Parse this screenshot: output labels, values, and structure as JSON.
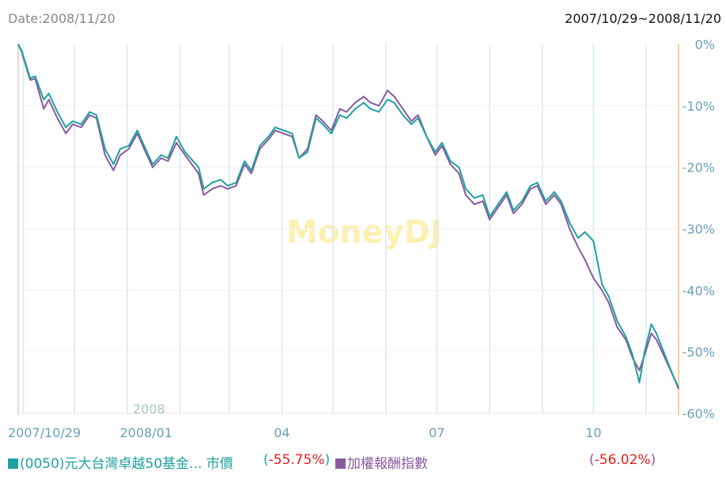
{
  "header": {
    "date_label": "Date:2008/11/20",
    "range_label": "2007/10/29~2008/11/20"
  },
  "watermark": "MoneyDJ",
  "legend": [
    {
      "name": "(0050)元大台灣卓越50基金... 市價",
      "value": "-55.75%",
      "color": "#20a0a0"
    },
    {
      "name": "加權報酬指數",
      "value": "-56.02%",
      "color": "#8a5a9e"
    }
  ],
  "chart_data": {
    "type": "line",
    "x_tick_labels": [
      "2007/10/29",
      "2008/01",
      "04",
      "07",
      "10"
    ],
    "year_marker": "2008",
    "y_tick_labels": [
      "0%",
      "-10%",
      "-20%",
      "-30%",
      "-40%",
      "-50%",
      "-60%"
    ],
    "ylim": [
      -60,
      0
    ],
    "x_range": [
      "2007-10-29",
      "2008-11-20"
    ],
    "grid": true,
    "series": [
      {
        "name": "(0050)元大台灣卓越50基金... 市價",
        "color": "#20a0a0",
        "points": [
          [
            "2007-10-29",
            0
          ],
          [
            "2007-10-31",
            -1
          ],
          [
            "2007-11-05",
            -5.5
          ],
          [
            "2007-11-08",
            -5.2
          ],
          [
            "2007-11-13",
            -9
          ],
          [
            "2007-11-16",
            -8
          ],
          [
            "2007-11-21",
            -11
          ],
          [
            "2007-11-26",
            -13.5
          ],
          [
            "2007-11-30",
            -12.5
          ],
          [
            "2007-12-05",
            -13
          ],
          [
            "2007-12-10",
            -11
          ],
          [
            "2007-12-14",
            -11.5
          ],
          [
            "2007-12-19",
            -17
          ],
          [
            "2007-12-24",
            -19.5
          ],
          [
            "2007-12-28",
            -17
          ],
          [
            "2008-01-02",
            -16.5
          ],
          [
            "2008-01-07",
            -14
          ],
          [
            "2008-01-11",
            -16.5
          ],
          [
            "2008-01-16",
            -19.5
          ],
          [
            "2008-01-21",
            -18
          ],
          [
            "2008-01-25",
            -18.5
          ],
          [
            "2008-01-30",
            -15
          ],
          [
            "2008-02-04",
            -17.5
          ],
          [
            "2008-02-12",
            -20
          ],
          [
            "2008-02-15",
            -23.5
          ],
          [
            "2008-02-20",
            -22.5
          ],
          [
            "2008-02-25",
            -22
          ],
          [
            "2008-02-29",
            -23
          ],
          [
            "2008-03-05",
            -22.5
          ],
          [
            "2008-03-10",
            -19
          ],
          [
            "2008-03-14",
            -20.5
          ],
          [
            "2008-03-19",
            -16.5
          ],
          [
            "2008-03-24",
            -15
          ],
          [
            "2008-03-28",
            -13.5
          ],
          [
            "2008-04-02",
            -14
          ],
          [
            "2008-04-07",
            -14.5
          ],
          [
            "2008-04-11",
            -18.5
          ],
          [
            "2008-04-16",
            -17.5
          ],
          [
            "2008-04-21",
            -12
          ],
          [
            "2008-04-25",
            -13
          ],
          [
            "2008-04-30",
            -14.5
          ],
          [
            "2008-05-05",
            -11.5
          ],
          [
            "2008-05-09",
            -12
          ],
          [
            "2008-05-14",
            -10.5
          ],
          [
            "2008-05-19",
            -9.5
          ],
          [
            "2008-05-23",
            -10.5
          ],
          [
            "2008-05-28",
            -11
          ],
          [
            "2008-06-02",
            -9
          ],
          [
            "2008-06-06",
            -9.5
          ],
          [
            "2008-06-11",
            -11.5
          ],
          [
            "2008-06-16",
            -13
          ],
          [
            "2008-06-20",
            -12
          ],
          [
            "2008-06-25",
            -15
          ],
          [
            "2008-06-30",
            -17.5
          ],
          [
            "2008-07-04",
            -16
          ],
          [
            "2008-07-09",
            -19
          ],
          [
            "2008-07-14",
            -20
          ],
          [
            "2008-07-18",
            -23.5
          ],
          [
            "2008-07-23",
            -25
          ],
          [
            "2008-07-28",
            -24.5
          ],
          [
            "2008-08-01",
            -28
          ],
          [
            "2008-08-06",
            -26
          ],
          [
            "2008-08-11",
            -24
          ],
          [
            "2008-08-15",
            -27
          ],
          [
            "2008-08-20",
            -25.5
          ],
          [
            "2008-08-25",
            -23
          ],
          [
            "2008-08-29",
            -22.5
          ],
          [
            "2008-09-03",
            -25.5
          ],
          [
            "2008-09-08",
            -24
          ],
          [
            "2008-09-12",
            -25.5
          ],
          [
            "2008-09-17",
            -29
          ],
          [
            "2008-09-22",
            -31.5
          ],
          [
            "2008-09-26",
            -30.5
          ],
          [
            "2008-10-01",
            -32
          ],
          [
            "2008-10-06",
            -39
          ],
          [
            "2008-10-10",
            -41
          ],
          [
            "2008-10-15",
            -45
          ],
          [
            "2008-10-20",
            -47.5
          ],
          [
            "2008-10-24",
            -50.5
          ],
          [
            "2008-10-28",
            -55
          ],
          [
            "2008-10-31",
            -50
          ],
          [
            "2008-11-04",
            -45.5
          ],
          [
            "2008-11-07",
            -47
          ],
          [
            "2008-11-12",
            -50.5
          ],
          [
            "2008-11-17",
            -54
          ],
          [
            "2008-11-20",
            -55.75
          ]
        ]
      },
      {
        "name": "加權報酬指數",
        "color": "#8a5a9e",
        "points": [
          [
            "2007-10-29",
            0
          ],
          [
            "2007-10-31",
            -1.2
          ],
          [
            "2007-11-05",
            -5.8
          ],
          [
            "2007-11-08",
            -5.6
          ],
          [
            "2007-11-13",
            -10.5
          ],
          [
            "2007-11-16",
            -9
          ],
          [
            "2007-11-21",
            -12
          ],
          [
            "2007-11-26",
            -14.5
          ],
          [
            "2007-11-30",
            -13
          ],
          [
            "2007-12-05",
            -13.5
          ],
          [
            "2007-12-10",
            -11.5
          ],
          [
            "2007-12-14",
            -12
          ],
          [
            "2007-12-19",
            -18
          ],
          [
            "2007-12-24",
            -20.5
          ],
          [
            "2007-12-28",
            -18
          ],
          [
            "2008-01-02",
            -17
          ],
          [
            "2008-01-07",
            -14.5
          ],
          [
            "2008-01-11",
            -17
          ],
          [
            "2008-01-16",
            -20
          ],
          [
            "2008-01-21",
            -18.5
          ],
          [
            "2008-01-25",
            -19
          ],
          [
            "2008-01-30",
            -16
          ],
          [
            "2008-02-04",
            -18
          ],
          [
            "2008-02-12",
            -21
          ],
          [
            "2008-02-15",
            -24.5
          ],
          [
            "2008-02-20",
            -23.5
          ],
          [
            "2008-02-25",
            -23
          ],
          [
            "2008-02-29",
            -23.5
          ],
          [
            "2008-03-05",
            -23
          ],
          [
            "2008-03-10",
            -19.5
          ],
          [
            "2008-03-14",
            -21
          ],
          [
            "2008-03-19",
            -17
          ],
          [
            "2008-03-24",
            -15.5
          ],
          [
            "2008-03-28",
            -14
          ],
          [
            "2008-04-02",
            -14.5
          ],
          [
            "2008-04-07",
            -15
          ],
          [
            "2008-04-11",
            -18.5
          ],
          [
            "2008-04-16",
            -17
          ],
          [
            "2008-04-21",
            -11.5
          ],
          [
            "2008-04-25",
            -12.5
          ],
          [
            "2008-04-30",
            -14
          ],
          [
            "2008-05-05",
            -10.5
          ],
          [
            "2008-05-09",
            -11
          ],
          [
            "2008-05-14",
            -9.5
          ],
          [
            "2008-05-19",
            -8.5
          ],
          [
            "2008-05-23",
            -9.5
          ],
          [
            "2008-05-28",
            -10
          ],
          [
            "2008-06-02",
            -7.5
          ],
          [
            "2008-06-06",
            -8.5
          ],
          [
            "2008-06-11",
            -10.5
          ],
          [
            "2008-06-16",
            -12.5
          ],
          [
            "2008-06-20",
            -11.5
          ],
          [
            "2008-06-25",
            -15
          ],
          [
            "2008-06-30",
            -18
          ],
          [
            "2008-07-04",
            -16.5
          ],
          [
            "2008-07-09",
            -19.5
          ],
          [
            "2008-07-14",
            -21
          ],
          [
            "2008-07-18",
            -24.5
          ],
          [
            "2008-07-23",
            -26
          ],
          [
            "2008-07-28",
            -25.5
          ],
          [
            "2008-08-01",
            -28.5
          ],
          [
            "2008-08-06",
            -26.5
          ],
          [
            "2008-08-11",
            -24.5
          ],
          [
            "2008-08-15",
            -27.5
          ],
          [
            "2008-08-20",
            -26
          ],
          [
            "2008-08-25",
            -23.5
          ],
          [
            "2008-08-29",
            -23
          ],
          [
            "2008-09-03",
            -26
          ],
          [
            "2008-09-08",
            -24.5
          ],
          [
            "2008-09-12",
            -26
          ],
          [
            "2008-09-17",
            -30
          ],
          [
            "2008-09-22",
            -33
          ],
          [
            "2008-09-26",
            -35
          ],
          [
            "2008-10-01",
            -38
          ],
          [
            "2008-10-06",
            -40
          ],
          [
            "2008-10-10",
            -42
          ],
          [
            "2008-10-15",
            -46
          ],
          [
            "2008-10-20",
            -48
          ],
          [
            "2008-10-24",
            -51
          ],
          [
            "2008-10-28",
            -53
          ],
          [
            "2008-10-31",
            -50.5
          ],
          [
            "2008-11-04",
            -47
          ],
          [
            "2008-11-07",
            -48
          ],
          [
            "2008-11-12",
            -51
          ],
          [
            "2008-11-17",
            -54
          ],
          [
            "2008-11-20",
            -56.02
          ]
        ]
      }
    ]
  }
}
